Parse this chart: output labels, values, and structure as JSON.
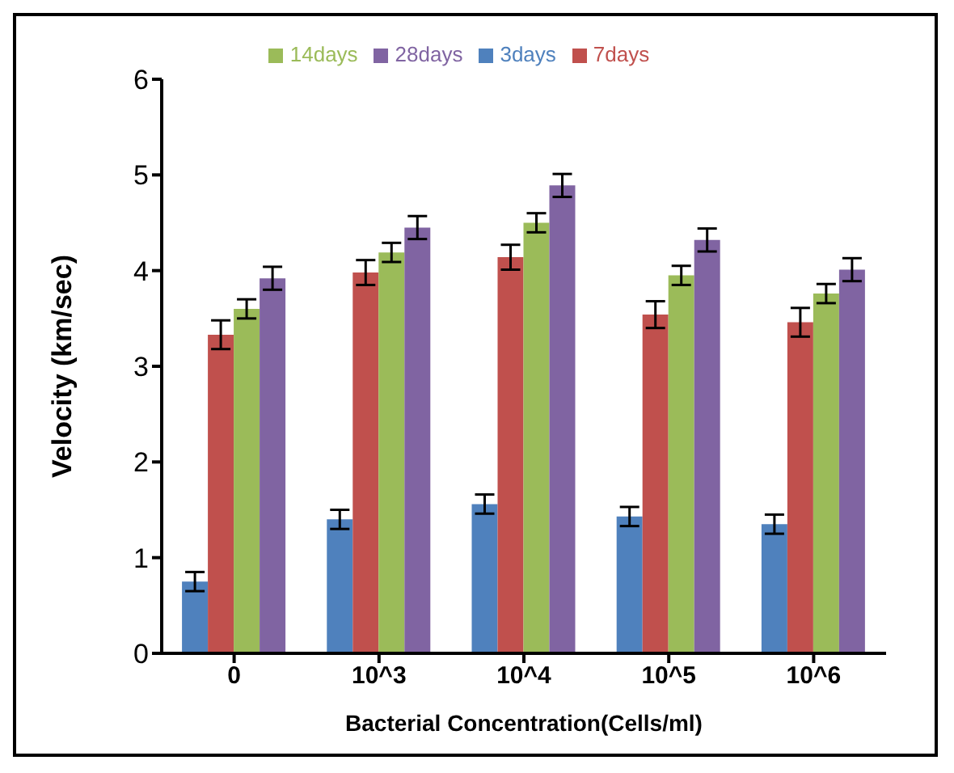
{
  "chart_data": {
    "type": "bar",
    "xlabel": "Bacterial Concentration(Cells/ml)",
    "ylabel": "Velocity  (km/sec)",
    "categories": [
      "0",
      "10^3",
      "10^4",
      "10^5",
      "10^6"
    ],
    "series": [
      {
        "name": "3days",
        "color": "#4f81bd",
        "values": [
          0.75,
          1.4,
          1.56,
          1.43,
          1.35
        ],
        "errors": [
          0.1,
          0.1,
          0.1,
          0.1,
          0.1
        ]
      },
      {
        "name": "7days",
        "color": "#c0504d",
        "values": [
          3.33,
          3.98,
          4.14,
          3.54,
          3.46
        ],
        "errors": [
          0.15,
          0.13,
          0.13,
          0.14,
          0.15
        ]
      },
      {
        "name": "14days",
        "color": "#9bbb59",
        "values": [
          3.6,
          4.19,
          4.5,
          3.95,
          3.76
        ],
        "errors": [
          0.1,
          0.1,
          0.1,
          0.1,
          0.1
        ]
      },
      {
        "name": "28days",
        "color": "#8064a2",
        "values": [
          3.92,
          4.45,
          4.89,
          4.32,
          4.01
        ],
        "errors": [
          0.12,
          0.12,
          0.12,
          0.12,
          0.12
        ]
      }
    ],
    "ylim": [
      0,
      6
    ],
    "yticks": [
      0,
      1,
      2,
      3,
      4,
      5,
      6
    ],
    "grid": false,
    "legend": "top"
  }
}
